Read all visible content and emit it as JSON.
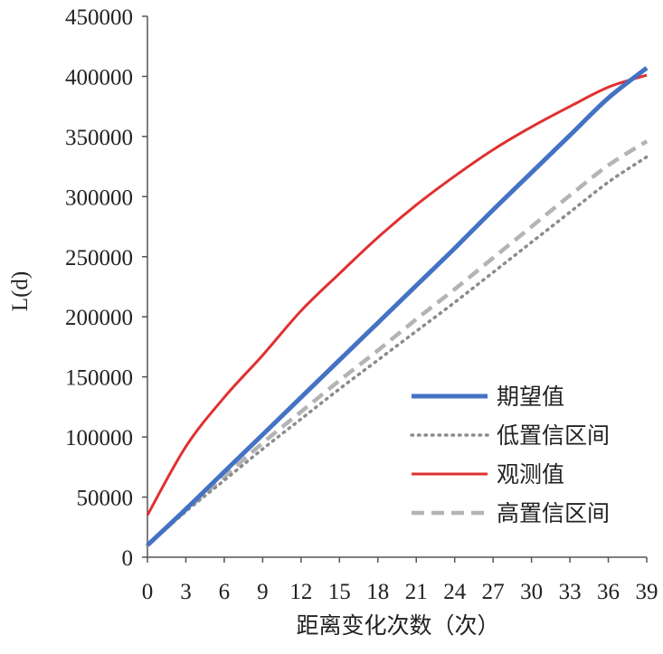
{
  "chart_data": {
    "type": "line",
    "title": "",
    "xlabel": "距离变化次数（次）",
    "ylabel": "L(d)",
    "xlim": [
      0,
      39
    ],
    "ylim": [
      0,
      450000
    ],
    "x_ticks": [
      0,
      3,
      6,
      9,
      12,
      15,
      18,
      21,
      24,
      27,
      30,
      33,
      36,
      39
    ],
    "y_ticks": [
      0,
      50000,
      100000,
      150000,
      200000,
      250000,
      300000,
      350000,
      400000,
      450000
    ],
    "grid": false,
    "legend_position": "bottom-right",
    "x": [
      0,
      3,
      6,
      9,
      12,
      15,
      18,
      21,
      24,
      27,
      30,
      33,
      36,
      39
    ],
    "series": [
      {
        "name": "期望值",
        "color": "#4472c4",
        "style": "solid",
        "values": [
          10000,
          40000,
          71000,
          102000,
          133000,
          164000,
          195000,
          226000,
          257000,
          289000,
          320000,
          351000,
          382000,
          407000
        ]
      },
      {
        "name": "低置信区间",
        "color": "#8c8c8c",
        "style": "dotted",
        "values": [
          10000,
          38000,
          64000,
          90000,
          115000,
          140000,
          164000,
          188000,
          212000,
          237000,
          262000,
          287000,
          312000,
          333000
        ]
      },
      {
        "name": "观测值",
        "color": "#e03030",
        "style": "solid",
        "values": [
          35000,
          92000,
          133000,
          168000,
          205000,
          236000,
          266000,
          293000,
          317000,
          339000,
          358000,
          375000,
          391000,
          401000
        ]
      },
      {
        "name": "高置信区间",
        "color": "#b4b4b4",
        "style": "dashed",
        "values": [
          10000,
          39000,
          67000,
          95000,
          121000,
          147000,
          172000,
          198000,
          223000,
          249000,
          275000,
          301000,
          326000,
          346000
        ]
      }
    ]
  }
}
